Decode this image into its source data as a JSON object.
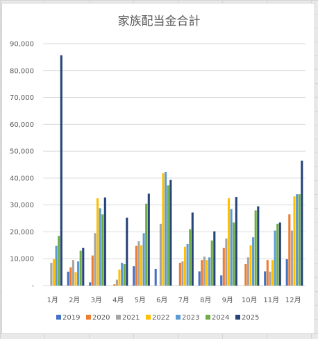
{
  "chart_data": {
    "type": "bar",
    "title": "家族配当金合計",
    "categories": [
      "1月",
      "2月",
      "3月",
      "4月",
      "5月",
      "6月",
      "7月",
      "8月",
      "9月",
      "10月",
      "11月",
      "12月"
    ],
    "ylim": [
      0,
      90000
    ],
    "yticks": [
      "-",
      "10,000",
      "20,000",
      "30,000",
      "40,000",
      "50,000",
      "60,000",
      "70,000",
      "80,000",
      "90,000"
    ],
    "grid": true,
    "legend_position": "bottom",
    "series": [
      {
        "name": "2019",
        "color": "#4472C4",
        "values": [
          0,
          5200,
          1200,
          0,
          7200,
          6200,
          0,
          5300,
          3800,
          0,
          5300,
          9800
        ]
      },
      {
        "name": "2020",
        "color": "#ED7D31",
        "values": [
          0,
          6800,
          11200,
          500,
          14800,
          0,
          8500,
          9500,
          14000,
          8000,
          9500,
          26500
        ]
      },
      {
        "name": "2021",
        "color": "#A5A5A5",
        "values": [
          8500,
          9500,
          19500,
          2200,
          16500,
          23000,
          9000,
          10800,
          17500,
          10500,
          5200,
          20500
        ]
      },
      {
        "name": "2022",
        "color": "#FFC000",
        "values": [
          9800,
          5000,
          32500,
          6000,
          15000,
          41800,
          14500,
          9500,
          32500,
          15000,
          9500,
          33200
        ]
      },
      {
        "name": "2023",
        "color": "#5B9BD5",
        "values": [
          14800,
          9000,
          28800,
          8500,
          19500,
          42300,
          15500,
          10500,
          28500,
          18000,
          20500,
          34000
        ]
      },
      {
        "name": "2024",
        "color": "#70AD47",
        "values": [
          18500,
          13000,
          26500,
          8000,
          30500,
          37300,
          21000,
          16800,
          23500,
          28000,
          23000,
          34000
        ]
      },
      {
        "name": "2025",
        "color": "#264478",
        "values": [
          85700,
          14000,
          32800,
          25300,
          34200,
          39300,
          27200,
          20200,
          33000,
          29500,
          23500,
          46500
        ]
      }
    ]
  }
}
